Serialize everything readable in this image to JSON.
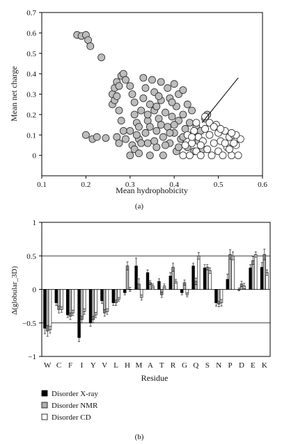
{
  "chart_data": [
    {
      "type": "scatter",
      "panel_label": "(a)",
      "xlabel": "Mean hydrophobicity",
      "ylabel": "Mean net charge",
      "xlim": [
        0.1,
        0.6
      ],
      "ylim": [
        -0.1,
        0.7
      ],
      "xticks": [
        "0.1",
        "0.2",
        "0.3",
        "0.4",
        "0.5",
        "0.6"
      ],
      "yticks": [
        "0",
        "0.1",
        "0.2",
        "0.3",
        "0.4",
        "0.5",
        "0.6",
        "0.7"
      ],
      "boundary_line": {
        "x": [
          0.463,
          0.545
        ],
        "y": [
          0.16,
          0.38
        ]
      },
      "series": [
        {
          "fill": "#bdbdbd",
          "points": [
            [
              0.18,
              0.59
            ],
            [
              0.19,
              0.585
            ],
            [
              0.2,
              0.59
            ],
            [
              0.205,
              0.565
            ],
            [
              0.21,
              0.535
            ],
            [
              0.235,
              0.48
            ],
            [
              0.2,
              0.1
            ],
            [
              0.215,
              0.08
            ],
            [
              0.225,
              0.09
            ],
            [
              0.245,
              0.085
            ],
            [
              0.26,
              0.3
            ],
            [
              0.265,
              0.33
            ],
            [
              0.27,
              0.36
            ],
            [
              0.275,
              0.34
            ],
            [
              0.28,
              0.39
            ],
            [
              0.285,
              0.4
            ],
            [
              0.29,
              0.37
            ],
            [
              0.26,
              0.25
            ],
            [
              0.265,
              0.27
            ],
            [
              0.27,
              0.29
            ],
            [
              0.275,
              0.22
            ],
            [
              0.28,
              0.17
            ],
            [
              0.285,
              0.12
            ],
            [
              0.27,
              0.09
            ],
            [
              0.275,
              0.06
            ],
            [
              0.29,
              0.08
            ],
            [
              0.3,
              0.34
            ],
            [
              0.305,
              0.3
            ],
            [
              0.31,
              0.26
            ],
            [
              0.31,
              0.2
            ],
            [
              0.315,
              0.16
            ],
            [
              0.3,
              0.12
            ],
            [
              0.305,
              0.05
            ],
            [
              0.31,
              0.03
            ],
            [
              0.3,
              0.0
            ],
            [
              0.32,
              0.01
            ],
            [
              0.32,
              0.08
            ],
            [
              0.32,
              0.14
            ],
            [
              0.325,
              0.22
            ],
            [
              0.33,
              0.28
            ],
            [
              0.33,
              0.38
            ],
            [
              0.335,
              0.33
            ],
            [
              0.335,
              0.11
            ],
            [
              0.34,
              0.17
            ],
            [
              0.34,
              0.06
            ],
            [
              0.345,
              0.25
            ],
            [
              0.35,
              0.37
            ],
            [
              0.355,
              0.31
            ],
            [
              0.355,
              0.22
            ],
            [
              0.36,
              0.12
            ],
            [
              0.36,
              0.04
            ],
            [
              0.365,
              0.18
            ],
            [
              0.37,
              0.27
            ],
            [
              0.37,
              0.36
            ],
            [
              0.375,
              0.09
            ],
            [
              0.375,
              0.0
            ],
            [
              0.38,
              0.21
            ],
            [
              0.385,
              0.14
            ],
            [
              0.385,
              0.33
            ],
            [
              0.39,
              0.28
            ],
            [
              0.39,
              0.06
            ],
            [
              0.395,
              0.19
            ],
            [
              0.4,
              0.35
            ],
            [
              0.4,
              0.11
            ],
            [
              0.405,
              0.02
            ],
            [
              0.405,
              0.24
            ],
            [
              0.41,
              0.17
            ],
            [
              0.41,
              0.3
            ],
            [
              0.415,
              0.08
            ],
            [
              0.42,
              0.32
            ],
            [
              0.42,
              0.2
            ],
            [
              0.425,
              0.13
            ],
            [
              0.43,
              0.25
            ],
            [
              0.43,
              0.04
            ],
            [
              0.435,
              0.16
            ],
            [
              0.44,
              0.1
            ],
            [
              0.44,
              0.22
            ],
            [
              0.445,
              0.02
            ],
            [
              0.45,
              0.14
            ],
            [
              0.455,
              0.07
            ],
            [
              0.46,
              0.12
            ],
            [
              0.465,
              0.03
            ],
            [
              0.47,
              0.18
            ],
            [
              0.475,
              0.2
            ],
            [
              0.345,
              0.0
            ],
            [
              0.355,
              0.07
            ],
            [
              0.365,
              0.29
            ],
            [
              0.395,
              0.26
            ],
            [
              0.345,
              0.14
            ],
            [
              0.325,
              0.06
            ],
            [
              0.315,
              0.1
            ],
            [
              0.38,
              0.05
            ],
            [
              0.41,
              0.04
            ],
            [
              0.4,
              0.15
            ],
            [
              0.36,
              0.24
            ],
            [
              0.34,
              0.2
            ],
            [
              0.37,
              0.15
            ],
            [
              0.39,
              0.11
            ],
            [
              0.42,
              0.09
            ]
          ]
        },
        {
          "fill": "#ffffff",
          "points": [
            [
              0.42,
              0.0
            ],
            [
              0.425,
              0.05
            ],
            [
              0.43,
              0.1
            ],
            [
              0.435,
              0.0
            ],
            [
              0.44,
              0.06
            ],
            [
              0.445,
              0.12
            ],
            [
              0.45,
              0.02
            ],
            [
              0.455,
              0.09
            ],
            [
              0.46,
              0.0
            ],
            [
              0.465,
              0.07
            ],
            [
              0.47,
              0.13
            ],
            [
              0.475,
              0.03
            ],
            [
              0.48,
              0.1
            ],
            [
              0.485,
              0.0
            ],
            [
              0.49,
              0.06
            ],
            [
              0.495,
              0.15
            ],
            [
              0.5,
              0.02
            ],
            [
              0.5,
              0.11
            ],
            [
              0.505,
              0.07
            ],
            [
              0.51,
              0.0
            ],
            [
              0.515,
              0.12
            ],
            [
              0.52,
              0.04
            ],
            [
              0.525,
              0.09
            ],
            [
              0.53,
              0.0
            ],
            [
              0.535,
              0.1
            ],
            [
              0.54,
              0.05
            ],
            [
              0.545,
              0.0
            ],
            [
              0.55,
              0.08
            ],
            [
              0.45,
              0.16
            ],
            [
              0.47,
              0.19
            ],
            [
              0.48,
              0.16
            ],
            [
              0.49,
              0.14
            ],
            [
              0.505,
              0.13
            ],
            [
              0.515,
              0.06
            ],
            [
              0.525,
              0.03
            ],
            [
              0.535,
              0.06
            ],
            [
              0.54,
              0.1
            ],
            [
              0.53,
              0.11
            ],
            [
              0.46,
              0.05
            ],
            [
              0.44,
              0.09
            ]
          ]
        }
      ]
    },
    {
      "type": "bar",
      "panel_label": "(b)",
      "xlabel": "Residue",
      "ylabel": "Δ(globular_3D)",
      "ylim": [
        -1,
        1
      ],
      "yticks": [
        "1",
        "0.5",
        "0",
        "−0.5",
        "−1"
      ],
      "categories": [
        "W",
        "C",
        "F",
        "I",
        "Y",
        "V",
        "L",
        "H",
        "M",
        "A",
        "T",
        "R",
        "G",
        "Q",
        "S",
        "N",
        "P",
        "D",
        "E",
        "K"
      ],
      "series": [
        {
          "name": "Disorder X-ray",
          "color": "#000000",
          "values": [
            -0.58,
            -0.2,
            -0.38,
            -0.72,
            -0.5,
            -0.17,
            -0.2,
            -0.05,
            0.35,
            0.25,
            0.12,
            0.2,
            -0.05,
            0.35,
            0.32,
            -0.2,
            0.15,
            0.0,
            0.32,
            0.33
          ],
          "errors": [
            0.08,
            0.04,
            0.04,
            0.06,
            0.05,
            0.04,
            0.04,
            0.03,
            0.12,
            0.04,
            0.04,
            0.05,
            0.03,
            0.04,
            0.05,
            0.05,
            0.08,
            0.02,
            0.05,
            0.07
          ]
        },
        {
          "name": "Disorder NMR",
          "color": "#b0b0b0",
          "values": [
            -0.62,
            -0.3,
            -0.4,
            -0.45,
            -0.45,
            -0.35,
            -0.2,
            0.35,
            0.08,
            0.1,
            -0.08,
            0.33,
            0.1,
            0.12,
            0.33,
            -0.22,
            0.52,
            0.08,
            0.43,
            0.52
          ],
          "errors": [
            0.08,
            0.05,
            0.05,
            0.05,
            0.05,
            0.05,
            0.04,
            0.06,
            0.08,
            0.03,
            0.04,
            0.06,
            0.04,
            0.05,
            0.04,
            0.04,
            0.07,
            0.04,
            0.06,
            0.08
          ]
        },
        {
          "name": "Disorder CD",
          "color": "#ffffff",
          "values": [
            -0.6,
            -0.3,
            -0.35,
            -0.33,
            -0.38,
            -0.33,
            -0.15,
            0.0,
            -0.12,
            0.05,
            0.05,
            0.12,
            -0.08,
            0.5,
            0.28,
            -0.2,
            0.5,
            0.05,
            0.52,
            0.25
          ],
          "errors": [
            0.05,
            0.04,
            0.04,
            0.04,
            0.04,
            0.04,
            0.03,
            0.03,
            0.04,
            0.03,
            0.03,
            0.03,
            0.03,
            0.05,
            0.04,
            0.05,
            0.06,
            0.04,
            0.04,
            0.04
          ]
        }
      ]
    }
  ]
}
